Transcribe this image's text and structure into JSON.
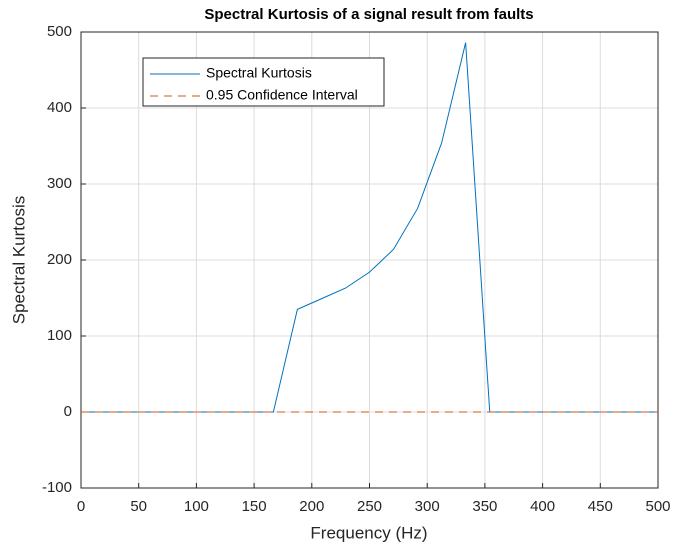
{
  "chart_data": {
    "type": "line",
    "title": "Spectral Kurtosis of a signal result from faults",
    "x_label": "Frequency (Hz)",
    "y_label": "Spectral Kurtosis",
    "series": [
      {
        "name": "Spectral Kurtosis",
        "color": "#0072bd",
        "dash": false,
        "x": [
          0,
          166.7,
          187.5,
          208.3,
          229.2,
          250,
          270.8,
          291.7,
          312.5,
          333.3,
          354.2,
          500
        ],
        "values": [
          0,
          0,
          135,
          149,
          163,
          184,
          214,
          268,
          354,
          486,
          0,
          0
        ]
      },
      {
        "name": "0.95 Confidence Interval",
        "color": "#d95319",
        "dash": true,
        "x": [
          0,
          500
        ],
        "values": [
          0,
          0
        ]
      }
    ],
    "xlim": [
      0,
      500
    ],
    "xticks": [
      0,
      50,
      100,
      150,
      200,
      250,
      300,
      350,
      400,
      450,
      500
    ],
    "ylim": [
      -100,
      500
    ],
    "yticks": [
      -100,
      0,
      100,
      200,
      300,
      400,
      500
    ],
    "grid": true,
    "legend": "upper left"
  }
}
